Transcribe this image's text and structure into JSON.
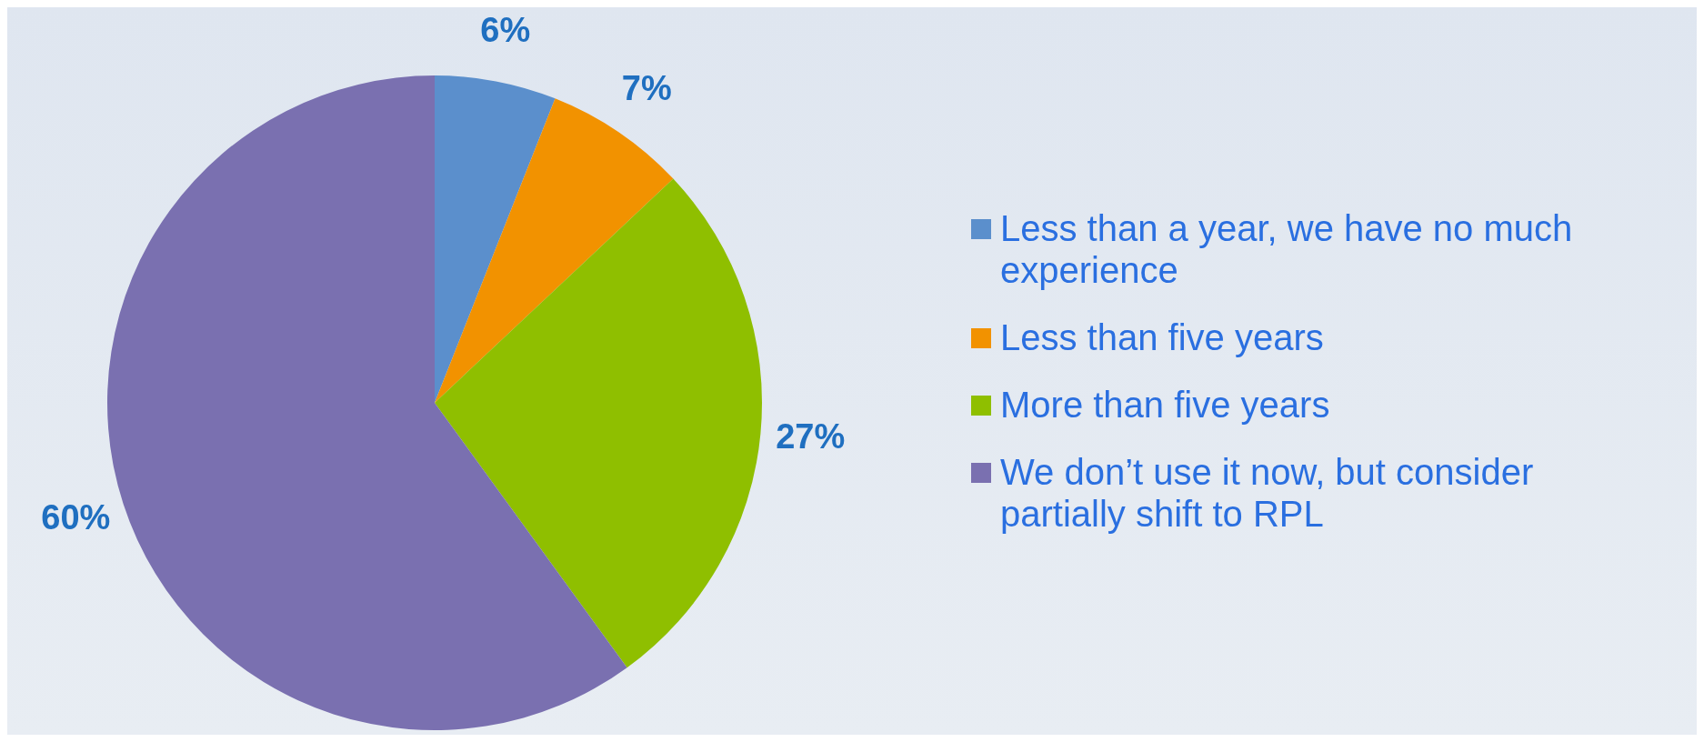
{
  "chart_data": {
    "type": "pie",
    "categories": [
      "Less than a year, we have no much experience",
      "Less than five years",
      "More than five years",
      "We don’t use it now, but consider partially shift to RPL"
    ],
    "values": [
      6,
      7,
      27,
      60
    ],
    "colors": [
      "#5b8fcc",
      "#f29200",
      "#8fbf00",
      "#7a70b0"
    ],
    "value_labels": [
      "6%",
      "7%",
      "27%",
      "60%"
    ],
    "legend": "right"
  }
}
